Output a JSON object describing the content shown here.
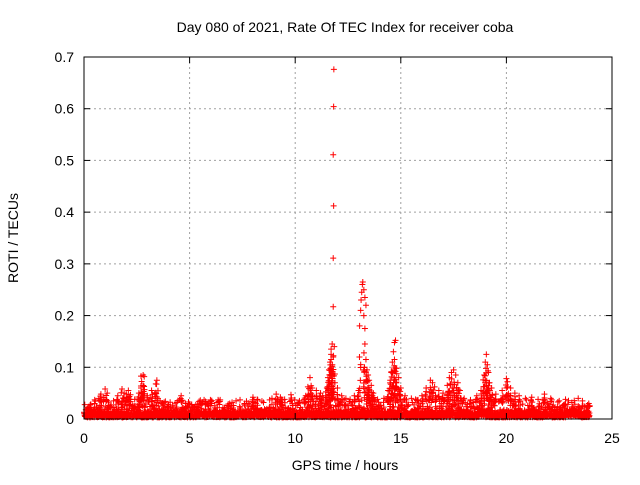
{
  "chart_data": {
    "type": "scatter",
    "title": "Day 080 of 2021, Rate Of TEC Index for receiver coba",
    "xlabel": "GPS time / hours",
    "ylabel": "ROTI / TECUs",
    "xlim": [
      0,
      25
    ],
    "ylim": [
      0,
      0.7
    ],
    "x_ticks": [
      0,
      5,
      10,
      15,
      20,
      25
    ],
    "x_tick_labels": [
      "0",
      "5",
      "10",
      "15",
      "20",
      "25"
    ],
    "y_ticks": [
      0,
      0.1,
      0.2,
      0.3,
      0.4,
      0.5,
      0.6,
      0.7
    ],
    "y_tick_labels": [
      "0",
      "0.1",
      "0.2",
      "0.3",
      "0.4",
      "0.5",
      "0.6",
      "0.7"
    ],
    "grid": true,
    "marker": "+",
    "color": "#ff0000",
    "baseline": {
      "x_range": [
        0,
        23.95
      ],
      "y_range": [
        0.003,
        0.032
      ],
      "points_per_hour": 90
    },
    "points": [
      [
        0.0,
        0.013
      ],
      [
        0.1,
        0.01
      ],
      [
        0.3,
        0.022
      ],
      [
        0.5,
        0.03
      ],
      [
        0.7,
        0.04
      ],
      [
        0.8,
        0.048
      ],
      [
        1.0,
        0.058
      ],
      [
        1.1,
        0.05
      ],
      [
        1.4,
        0.035
      ],
      [
        1.6,
        0.045
      ],
      [
        1.8,
        0.058
      ],
      [
        1.9,
        0.05
      ],
      [
        2.0,
        0.048
      ],
      [
        2.1,
        0.055
      ],
      [
        2.2,
        0.047
      ],
      [
        2.4,
        0.038
      ],
      [
        2.6,
        0.05
      ],
      [
        2.7,
        0.06
      ],
      [
        2.7,
        0.083
      ],
      [
        2.8,
        0.085
      ],
      [
        2.85,
        0.082
      ],
      [
        3.0,
        0.045
      ],
      [
        3.2,
        0.055
      ],
      [
        3.4,
        0.068
      ],
      [
        3.45,
        0.075
      ],
      [
        3.6,
        0.035
      ],
      [
        4.0,
        0.028
      ],
      [
        4.4,
        0.032
      ],
      [
        4.6,
        0.045
      ],
      [
        4.8,
        0.03
      ],
      [
        5.1,
        0.028
      ],
      [
        5.6,
        0.03
      ],
      [
        6.0,
        0.026
      ],
      [
        6.3,
        0.032
      ],
      [
        6.9,
        0.03
      ],
      [
        7.2,
        0.035
      ],
      [
        7.6,
        0.03
      ],
      [
        8.0,
        0.042
      ],
      [
        8.2,
        0.038
      ],
      [
        8.5,
        0.032
      ],
      [
        8.9,
        0.04
      ],
      [
        9.1,
        0.048
      ],
      [
        9.3,
        0.042
      ],
      [
        9.5,
        0.038
      ],
      [
        9.8,
        0.047
      ],
      [
        10.2,
        0.035
      ],
      [
        10.5,
        0.045
      ],
      [
        10.6,
        0.062
      ],
      [
        10.7,
        0.08
      ],
      [
        10.8,
        0.06
      ],
      [
        11.0,
        0.055
      ],
      [
        11.2,
        0.05
      ],
      [
        11.3,
        0.045
      ],
      [
        11.5,
        0.06
      ],
      [
        11.55,
        0.08
      ],
      [
        11.6,
        0.095
      ],
      [
        11.65,
        0.11
      ],
      [
        11.7,
        0.125
      ],
      [
        11.7,
        0.135
      ],
      [
        11.75,
        0.145
      ],
      [
        11.7,
        0.115
      ],
      [
        11.8,
        0.12
      ],
      [
        11.85,
        0.14
      ],
      [
        11.8,
        0.217
      ],
      [
        11.8,
        0.311
      ],
      [
        11.82,
        0.412
      ],
      [
        11.8,
        0.511
      ],
      [
        11.82,
        0.604
      ],
      [
        11.83,
        0.676
      ],
      [
        12.0,
        0.06
      ],
      [
        12.2,
        0.045
      ],
      [
        12.4,
        0.04
      ],
      [
        12.6,
        0.038
      ],
      [
        12.8,
        0.045
      ],
      [
        13.0,
        0.055
      ],
      [
        13.05,
        0.18
      ],
      [
        13.1,
        0.21
      ],
      [
        13.12,
        0.23
      ],
      [
        13.15,
        0.245
      ],
      [
        13.18,
        0.26
      ],
      [
        13.2,
        0.265
      ],
      [
        13.25,
        0.25
      ],
      [
        13.3,
        0.235
      ],
      [
        13.35,
        0.22
      ],
      [
        13.25,
        0.2
      ],
      [
        13.3,
        0.175
      ],
      [
        13.3,
        0.145
      ],
      [
        13.35,
        0.115
      ],
      [
        13.4,
        0.095
      ],
      [
        13.45,
        0.085
      ],
      [
        13.5,
        0.075
      ],
      [
        13.6,
        0.065
      ],
      [
        13.7,
        0.05
      ],
      [
        13.9,
        0.038
      ],
      [
        14.2,
        0.04
      ],
      [
        14.4,
        0.055
      ],
      [
        14.5,
        0.075
      ],
      [
        14.55,
        0.09
      ],
      [
        14.6,
        0.11
      ],
      [
        14.65,
        0.13
      ],
      [
        14.7,
        0.148
      ],
      [
        14.75,
        0.152
      ],
      [
        14.7,
        0.115
      ],
      [
        14.8,
        0.098
      ],
      [
        14.9,
        0.08
      ],
      [
        15.0,
        0.06
      ],
      [
        15.2,
        0.045
      ],
      [
        15.5,
        0.04
      ],
      [
        15.7,
        0.038
      ],
      [
        16.0,
        0.045
      ],
      [
        16.2,
        0.06
      ],
      [
        16.4,
        0.075
      ],
      [
        16.5,
        0.07
      ],
      [
        16.6,
        0.062
      ],
      [
        16.8,
        0.055
      ],
      [
        17.0,
        0.05
      ],
      [
        17.2,
        0.065
      ],
      [
        17.3,
        0.08
      ],
      [
        17.4,
        0.09
      ],
      [
        17.5,
        0.095
      ],
      [
        17.6,
        0.085
      ],
      [
        17.7,
        0.07
      ],
      [
        17.8,
        0.055
      ],
      [
        18.0,
        0.04
      ],
      [
        18.3,
        0.035
      ],
      [
        18.6,
        0.045
      ],
      [
        18.8,
        0.055
      ],
      [
        18.95,
        0.085
      ],
      [
        19.0,
        0.11
      ],
      [
        19.05,
        0.125
      ],
      [
        19.1,
        0.105
      ],
      [
        19.15,
        0.09
      ],
      [
        19.2,
        0.07
      ],
      [
        19.3,
        0.06
      ],
      [
        19.5,
        0.048
      ],
      [
        19.8,
        0.055
      ],
      [
        20.0,
        0.078
      ],
      [
        20.05,
        0.072
      ],
      [
        20.2,
        0.06
      ],
      [
        20.4,
        0.05
      ],
      [
        20.6,
        0.045
      ],
      [
        20.9,
        0.04
      ],
      [
        21.2,
        0.042
      ],
      [
        21.5,
        0.038
      ],
      [
        21.8,
        0.048
      ],
      [
        22.1,
        0.04
      ],
      [
        22.5,
        0.035
      ],
      [
        22.8,
        0.038
      ],
      [
        23.1,
        0.032
      ],
      [
        23.4,
        0.04
      ],
      [
        23.6,
        0.035
      ],
      [
        23.9,
        0.03
      ]
    ]
  }
}
